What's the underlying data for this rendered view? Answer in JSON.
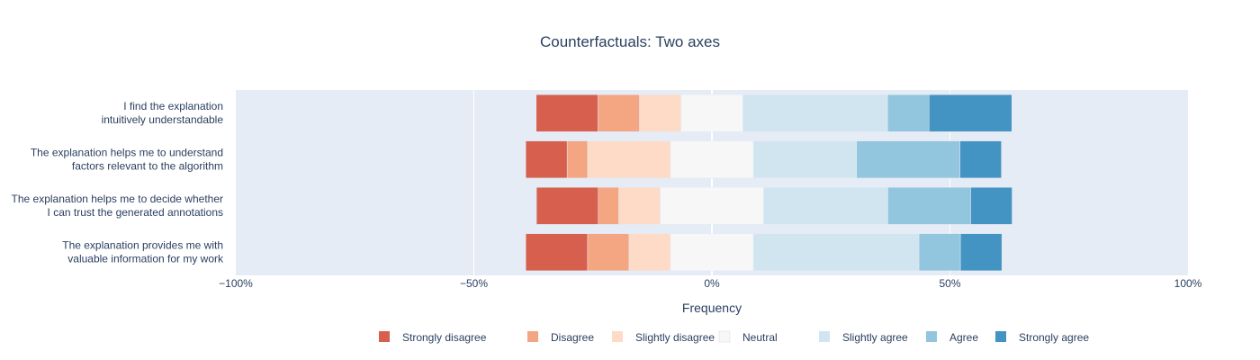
{
  "chart_data": {
    "type": "bar",
    "orientation": "horizontal",
    "barmode": "diverging-stacked",
    "title": "Counterfactuals: Two axes",
    "xlabel": "Frequency",
    "ylabel": "",
    "xlim": [
      -100,
      100
    ],
    "x_ticks": [
      -100,
      -50,
      0,
      50,
      100
    ],
    "x_tick_labels": [
      "−100%",
      "−50%",
      "0%",
      "50%",
      "100%"
    ],
    "grid": true,
    "legend_position": "bottom-center",
    "categories": [
      [
        "I find the explanation",
        "intuitively understandable"
      ],
      [
        "The explanation helps me to understand",
        "factors relevant to the algorithm"
      ],
      [
        "The explanation helps me to decide whether",
        "I can trust the generated annotations"
      ],
      [
        "The explanation provides me with",
        "valuable information for my work"
      ]
    ],
    "series": [
      {
        "name": "Strongly disagree",
        "color": "#d6604d",
        "values": [
          13.0,
          8.7,
          13.0,
          13.0
        ]
      },
      {
        "name": "Disagree",
        "color": "#f4a582",
        "values": [
          8.7,
          4.3,
          4.3,
          8.7
        ]
      },
      {
        "name": "Slightly disagree",
        "color": "#fddbc7",
        "values": [
          8.7,
          17.4,
          8.7,
          8.7
        ]
      },
      {
        "name": "Neutral",
        "color": "#f7f7f7",
        "values": [
          13.0,
          17.4,
          21.7,
          17.4
        ]
      },
      {
        "name": "Slightly agree",
        "color": "#d1e5f0",
        "values": [
          30.4,
          21.7,
          26.1,
          34.8
        ]
      },
      {
        "name": "Agree",
        "color": "#92c5de",
        "values": [
          8.7,
          21.7,
          17.4,
          8.7
        ]
      },
      {
        "name": "Strongly agree",
        "color": "#4393c3",
        "values": [
          17.4,
          8.7,
          8.7,
          8.7
        ]
      }
    ],
    "colors": {
      "plot_bg": "#e5ecf6",
      "grid": "#ffffff",
      "text": "#2a3f5f"
    }
  }
}
